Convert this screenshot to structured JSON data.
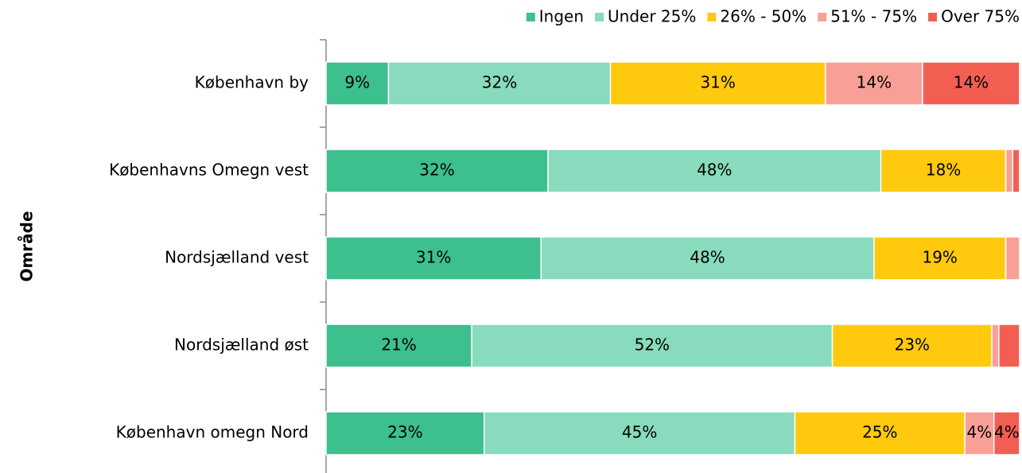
{
  "chart_data": {
    "type": "bar",
    "orientation": "horizontal",
    "stacked": true,
    "y_label": "Område",
    "categories": [
      "København by",
      "Københavns Omegn vest",
      "Nordsjælland vest",
      "Nordsjælland øst",
      "København omegn Nord"
    ],
    "xlim": [
      0,
      100
    ],
    "legend": "top-right",
    "series": [
      {
        "name": "Ingen",
        "color": "#3dbf8e",
        "values": [
          9,
          32,
          31,
          21,
          22.8
        ],
        "value_labels": [
          "9%",
          "32%",
          "31%",
          "21%",
          "23%"
        ]
      },
      {
        "name": "Under 25%",
        "color": "#88dbbd",
        "values": [
          32,
          48,
          48,
          52,
          44.8
        ],
        "value_labels": [
          "32%",
          "48%",
          "48%",
          "52%",
          "45%"
        ]
      },
      {
        "name": "26% - 50%",
        "color": "#ffc90e",
        "values": [
          31,
          18,
          19,
          23,
          24.5
        ],
        "value_labels": [
          "31%",
          "18%",
          "19%",
          "23%",
          "25%"
        ]
      },
      {
        "name": "51% - 75%",
        "color": "#f8a097",
        "values": [
          14,
          1,
          2,
          1,
          4.2
        ],
        "value_labels": [
          "14%",
          null,
          null,
          null,
          "4%"
        ]
      },
      {
        "name": "Over 75%",
        "color": "#f25f52",
        "values": [
          14,
          1,
          0,
          3,
          3.7
        ],
        "value_labels": [
          "14%",
          null,
          null,
          null,
          "4%"
        ]
      }
    ]
  }
}
